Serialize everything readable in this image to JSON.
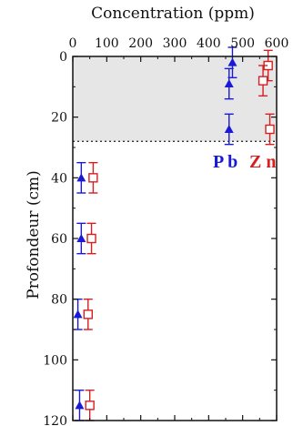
{
  "chart_data": {
    "type": "scatter",
    "xlabel": "Concentration (ppm)",
    "ylabel": "Profondeur (cm)",
    "xlim": [
      0,
      600
    ],
    "ylim": [
      0,
      120
    ],
    "x_axis_position": "top",
    "y_inverted": true,
    "x_ticks": [
      0,
      100,
      200,
      300,
      400,
      500,
      600
    ],
    "x_tick_labels": [
      "0",
      "100",
      "200",
      "300",
      "400",
      "500",
      "600"
    ],
    "y_ticks": [
      0,
      20,
      40,
      60,
      80,
      100,
      120
    ],
    "y_tick_labels": [
      "0",
      "20",
      "40",
      "60",
      "80",
      "100",
      "120"
    ],
    "shaded_region": {
      "y_from": 0,
      "y_to": 28,
      "color": "#e6e6e6"
    },
    "reference_line": {
      "y": 28,
      "style": "dotted"
    },
    "series": [
      {
        "name": "P b",
        "marker": "triangle",
        "color": "#1a1ad6",
        "points": [
          {
            "x": 470,
            "y": 2,
            "err": 5
          },
          {
            "x": 460,
            "y": 9,
            "err": 5
          },
          {
            "x": 460,
            "y": 24,
            "err": 5
          },
          {
            "x": 25,
            "y": 40,
            "err": 5
          },
          {
            "x": 25,
            "y": 60,
            "err": 5
          },
          {
            "x": 15,
            "y": 85,
            "err": 5
          },
          {
            "x": 20,
            "y": 115,
            "err": 5
          }
        ]
      },
      {
        "name": "Z n",
        "marker": "open-square",
        "color": "#d42020",
        "points": [
          {
            "x": 575,
            "y": 3,
            "err": 5
          },
          {
            "x": 560,
            "y": 8,
            "err": 5
          },
          {
            "x": 580,
            "y": 24,
            "err": 5
          },
          {
            "x": 60,
            "y": 40,
            "err": 5
          },
          {
            "x": 55,
            "y": 60,
            "err": 5
          },
          {
            "x": 45,
            "y": 85,
            "err": 5
          },
          {
            "x": 50,
            "y": 115,
            "err": 5
          }
        ]
      }
    ],
    "legend": [
      {
        "label": "P b",
        "color": "#1a1ad6"
      },
      {
        "label": "Z n",
        "color": "#d42020"
      }
    ]
  }
}
